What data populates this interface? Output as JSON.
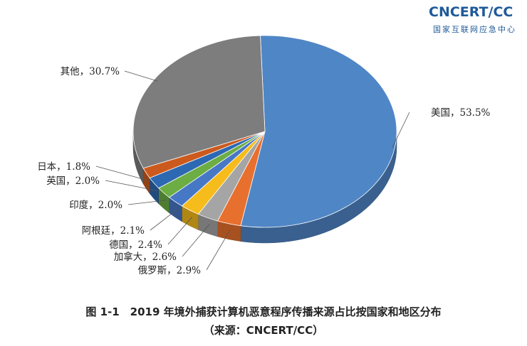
{
  "logo": {
    "main": "CNCERT/CC",
    "sub": "国家互联网应急中心"
  },
  "chart_data": {
    "type": "pie",
    "title": "图 1-1　2019 年境外捕获计算机恶意程序传播来源占比按国家和地区分布",
    "subtitle": "（来源：CNCERT/CC）",
    "slices": [
      {
        "label": "美国",
        "text": "美国，53.5%",
        "value": 53.5,
        "color": "#4f86c6"
      },
      {
        "label": "俄罗斯",
        "text": "俄罗斯，2.9%",
        "value": 2.9,
        "color": "#e8702e"
      },
      {
        "label": "加拿大",
        "text": "加拿大，2.6%",
        "value": 2.6,
        "color": "#a5a5a5"
      },
      {
        "label": "德国",
        "text": "德国，2.4%",
        "value": 2.4,
        "color": "#f6bc1c"
      },
      {
        "label": "阿根廷",
        "text": "阿根廷，2.1%",
        "value": 2.1,
        "color": "#4778c6"
      },
      {
        "label": "印度",
        "text": "印度，2.0%",
        "value": 2.0,
        "color": "#6cad44"
      },
      {
        "label": "英国",
        "text": "英国，2.0%",
        "value": 2.0,
        "color": "#2d68b2"
      },
      {
        "label": "日本",
        "text": "日本，1.8%",
        "value": 1.8,
        "color": "#cc5a1e"
      },
      {
        "label": "其他",
        "text": "其他，30.7%",
        "value": 30.7,
        "color": "#7d7d7d"
      }
    ],
    "legend": "none",
    "labels": "outside-with-leader-lines"
  }
}
